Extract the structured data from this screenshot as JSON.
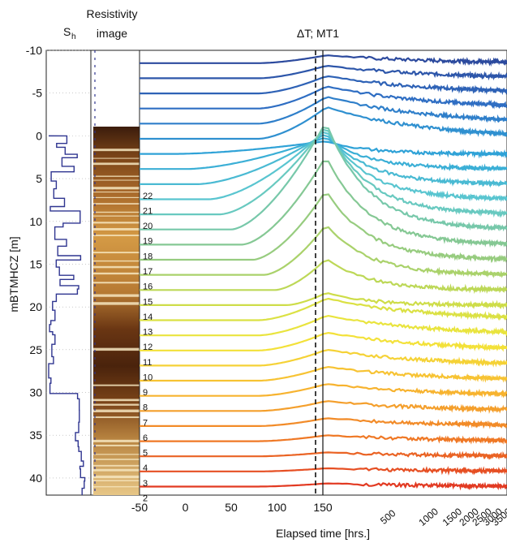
{
  "chart_data": {
    "type": "line",
    "panels": {
      "sh": {
        "title": "S",
        "title_subscript": "h"
      },
      "res": {
        "title_line1": "Resistivity",
        "title_line2": "image"
      },
      "main": {
        "title": "ΔT; MT1"
      }
    },
    "ylabel": "mBTMHCZ [m]",
    "xlabel": "Elapsed time [hrs.]",
    "ylim": [
      42,
      -10
    ],
    "y_ticks": [
      "-10",
      "-5",
      "0",
      "5",
      "10",
      "15",
      "20",
      "25",
      "30",
      "35",
      "40"
    ],
    "x_ticks_linear": [
      "-50",
      "0",
      "50",
      "100",
      "150"
    ],
    "x_ticks_log": [
      "500",
      "1000",
      "1500",
      "2000",
      "2500",
      "3000",
      "3500"
    ],
    "x_axis_note": "linear scale from -50 to 150 hrs, log scale from 150 to 3500 hrs",
    "dashed_line_x": 144,
    "solid_line_x": 150,
    "sensor_labels": [
      "2",
      "3",
      "4",
      "5",
      "6",
      "7",
      "8",
      "9",
      "10",
      "11",
      "12",
      "13",
      "14",
      "15",
      "16",
      "17",
      "18",
      "19",
      "20",
      "21",
      "22"
    ],
    "series_count": 29,
    "colormap": [
      "#2c4a9e",
      "#2f6fc4",
      "#2fa6d8",
      "#5ec9cf",
      "#8cc88a",
      "#c8dc4c",
      "#f2e63a",
      "#f8b730",
      "#ef7a25",
      "#e23a22"
    ],
    "sh_profile_note": "step profile of hydrate saturation from 0 to 42 m"
  }
}
